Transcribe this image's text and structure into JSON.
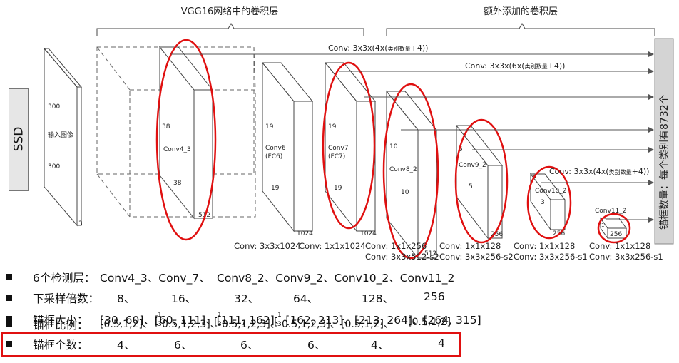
{
  "top_labels": {
    "vgg": "VGG16网络中的卷积层",
    "extra": "额外添加的卷积层"
  },
  "ssd_label": "SSD",
  "right_label": "锚框数量：每个类别有8732个",
  "input": {
    "h": "300",
    "w": "300",
    "c": "3",
    "name": "输入图像"
  },
  "blocks": {
    "conv4_3": {
      "name": "Conv4_3",
      "h": "38",
      "w": "38",
      "c": "512"
    },
    "conv6": {
      "name": "Conv6",
      "sub": "(FC6)",
      "h": "19",
      "w": "19",
      "c": "1024",
      "below": "Conv: 3x3x1024"
    },
    "conv7": {
      "name": "Conv7",
      "sub": "(FC7)",
      "h": "19",
      "w": "19",
      "c": "1024",
      "below": "Conv: 1x1x1024"
    },
    "conv8_2": {
      "name": "Conv8_2",
      "h": "10",
      "w": "10",
      "c": "512",
      "below1": "Conv: 1x1x256",
      "below2": "Conv: 3x3x512-s2"
    },
    "conv9_2": {
      "name": "Conv9_2",
      "h": "5",
      "w": "5",
      "c": "256",
      "below1": "Conv: 1x1x128",
      "below2": "Conv: 3x3x256-s2"
    },
    "conv10_2": {
      "name": "Conv10_2",
      "h": "3",
      "w": "3",
      "c": "256",
      "below1": "Conv: 1x1x128",
      "below2": "Conv: 3x3x256-s1"
    },
    "conv11_2": {
      "name": "Conv11_2",
      "h": "1",
      "c": "256",
      "below1": "Conv: 1x1x128",
      "below2": "Conv: 3x3x256-s1"
    }
  },
  "arrows": {
    "a1": "Conv: 3x3x(4x(",
    "a1_small": "类别数量",
    "a1_end": "+4))",
    "a2": "Conv: 3x3x(6x(",
    "a2_small": "类别数量",
    "a2_end": "+4))",
    "a3": "Conv: 3x3x(4x(",
    "a3_small": "类别数量",
    "a3_end": "+4))"
  },
  "rows": {
    "r1": {
      "label": "6个检测层：",
      "values": [
        "Conv4_3、Conv_7、",
        "Conv8_2、Conv9_2、Conv10_2、Conv11_2"
      ]
    },
    "r2": {
      "label": "下采样倍数：",
      "values": [
        "8、",
        "16、",
        "32、",
        "64、",
        "128、",
        "256"
      ]
    },
    "r3": {
      "label": "锚框大小：",
      "values": [
        "[30, 60]、[60, 111]、[111, 162]、[162, 213]、[213, 264]、[264, 315]"
      ]
    },
    "r4": {
      "label": "锚框比例：",
      "values": [
        "[0.5,1,2]、",
        "[",
        "0.5,1,2,3]、",
        "[",
        "0.5,1,2,3]、",
        "[",
        "0.5,1,2,3]、",
        "[0.5,1,2]、",
        "[0.5,1,2]"
      ],
      "frac_num": "1",
      "frac_den": "3"
    },
    "r5": {
      "label": "锚框个数：",
      "values": [
        "4、",
        "6、",
        "6、",
        "6、",
        "4、",
        "4"
      ]
    }
  },
  "colors": {
    "highlight": "#e01010"
  }
}
